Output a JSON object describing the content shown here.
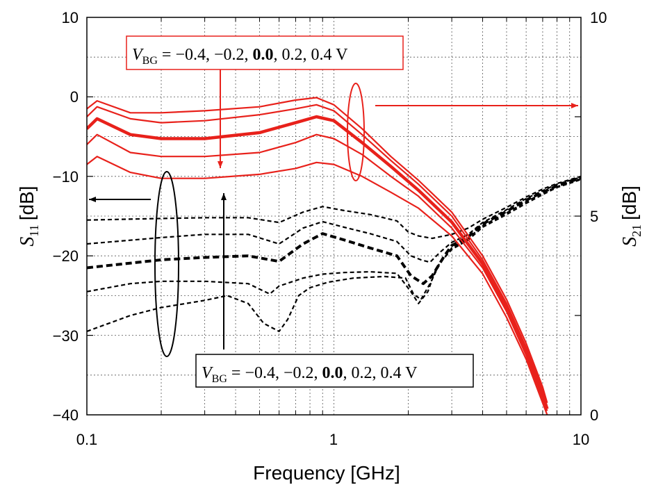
{
  "chart_data": {
    "type": "line",
    "xlabel": "Frequency [GHz]",
    "x_scale": "log",
    "xlim": [
      0.1,
      10
    ],
    "x_ticks": [
      "0.1",
      "1",
      "10"
    ],
    "y_left": {
      "label_main": "S",
      "label_sub": "11",
      "label_unit": "[dB]",
      "lim": [
        -40,
        10
      ],
      "ticks": [
        "10",
        "0",
        "−10",
        "−20",
        "−30",
        "−40"
      ]
    },
    "y_right": {
      "label_main": "S",
      "label_sub": "21",
      "label_unit": "[dB]",
      "lim": [
        0,
        10
      ],
      "ticks": [
        "10",
        "5",
        "0"
      ]
    },
    "grid": true,
    "annotations": {
      "s21": {
        "v": "V",
        "sub": "BG",
        "pre": " = −0.4, −0.2, ",
        "bold": "0.0",
        "post": ", 0.2, 0.4 V"
      },
      "s11": {
        "v": "V",
        "sub": "BG",
        "pre": " = −0.4, −0.2, ",
        "bold": "0.0",
        "post": ", 0.2, 0.4 V"
      }
    },
    "colors": {
      "s21": "#e8211b",
      "s11": "#000000"
    },
    "s21_series": [
      {
        "axis": "right",
        "bold": false,
        "points": [
          [
            0.1,
            7.7
          ],
          [
            0.11,
            7.9
          ],
          [
            0.15,
            7.6
          ],
          [
            0.2,
            7.6
          ],
          [
            0.3,
            7.65
          ],
          [
            0.5,
            7.75
          ],
          [
            0.7,
            7.92
          ],
          [
            0.85,
            7.98
          ],
          [
            1.0,
            7.8
          ],
          [
            1.3,
            7.2
          ],
          [
            1.7,
            6.5
          ],
          [
            2.2,
            5.9
          ],
          [
            3.0,
            5.1
          ],
          [
            4.0,
            4.0
          ],
          [
            5.0,
            2.9
          ],
          [
            6.0,
            1.8
          ],
          [
            7.0,
            0.7
          ],
          [
            7.3,
            0.3
          ]
        ]
      },
      {
        "axis": "right",
        "bold": false,
        "points": [
          [
            0.1,
            7.5
          ],
          [
            0.11,
            7.75
          ],
          [
            0.15,
            7.45
          ],
          [
            0.2,
            7.35
          ],
          [
            0.3,
            7.4
          ],
          [
            0.5,
            7.55
          ],
          [
            0.7,
            7.7
          ],
          [
            0.85,
            7.8
          ],
          [
            1.0,
            7.65
          ],
          [
            1.3,
            7.05
          ],
          [
            1.7,
            6.4
          ],
          [
            2.2,
            5.8
          ],
          [
            3.0,
            5.0
          ],
          [
            4.0,
            3.9
          ],
          [
            5.0,
            2.8
          ],
          [
            6.0,
            1.7
          ],
          [
            7.0,
            0.6
          ],
          [
            7.3,
            0.2
          ]
        ]
      },
      {
        "axis": "right",
        "bold": true,
        "points": [
          [
            0.1,
            7.2
          ],
          [
            0.11,
            7.45
          ],
          [
            0.15,
            7.05
          ],
          [
            0.2,
            6.95
          ],
          [
            0.3,
            6.95
          ],
          [
            0.5,
            7.1
          ],
          [
            0.7,
            7.35
          ],
          [
            0.85,
            7.5
          ],
          [
            1.0,
            7.4
          ],
          [
            1.3,
            6.85
          ],
          [
            1.7,
            6.25
          ],
          [
            2.2,
            5.65
          ],
          [
            3.0,
            4.85
          ],
          [
            4.0,
            3.8
          ],
          [
            5.0,
            2.7
          ],
          [
            6.0,
            1.6
          ],
          [
            7.0,
            0.5
          ],
          [
            7.3,
            0.15
          ]
        ]
      },
      {
        "axis": "right",
        "bold": false,
        "points": [
          [
            0.1,
            6.8
          ],
          [
            0.11,
            7.05
          ],
          [
            0.15,
            6.6
          ],
          [
            0.2,
            6.5
          ],
          [
            0.3,
            6.5
          ],
          [
            0.5,
            6.6
          ],
          [
            0.7,
            6.85
          ],
          [
            0.85,
            7.05
          ],
          [
            1.0,
            6.95
          ],
          [
            1.3,
            6.55
          ],
          [
            1.7,
            6.0
          ],
          [
            2.2,
            5.5
          ],
          [
            3.0,
            4.7
          ],
          [
            4.0,
            3.7
          ],
          [
            5.0,
            2.6
          ],
          [
            6.0,
            1.5
          ],
          [
            7.0,
            0.4
          ],
          [
            7.3,
            0.1
          ]
        ]
      },
      {
        "axis": "right",
        "bold": false,
        "points": [
          [
            0.1,
            6.3
          ],
          [
            0.11,
            6.5
          ],
          [
            0.15,
            6.1
          ],
          [
            0.2,
            5.95
          ],
          [
            0.3,
            5.95
          ],
          [
            0.5,
            6.05
          ],
          [
            0.7,
            6.2
          ],
          [
            0.85,
            6.35
          ],
          [
            1.0,
            6.3
          ],
          [
            1.3,
            6.0
          ],
          [
            1.7,
            5.6
          ],
          [
            2.2,
            5.2
          ],
          [
            3.0,
            4.5
          ],
          [
            4.0,
            3.55
          ],
          [
            5.0,
            2.45
          ],
          [
            6.0,
            1.4
          ],
          [
            7.0,
            0.3
          ],
          [
            7.3,
            0.0
          ]
        ]
      }
    ],
    "s11_series": [
      {
        "axis": "left",
        "bold": false,
        "points": [
          [
            0.1,
            -15.5
          ],
          [
            0.2,
            -15.3
          ],
          [
            0.3,
            -15.2
          ],
          [
            0.45,
            -15.2
          ],
          [
            0.6,
            -15.8
          ],
          [
            0.75,
            -14.5
          ],
          [
            0.9,
            -13.8
          ],
          [
            1.1,
            -14.3
          ],
          [
            1.4,
            -14.8
          ],
          [
            1.8,
            -15.6
          ],
          [
            2.0,
            -17.0
          ],
          [
            2.2,
            -17.5
          ],
          [
            2.5,
            -17.8
          ],
          [
            3.0,
            -17.3
          ],
          [
            3.5,
            -16.5
          ],
          [
            4.0,
            -15.4
          ],
          [
            5.0,
            -13.9
          ],
          [
            6.0,
            -12.6
          ],
          [
            7.0,
            -11.6
          ],
          [
            8.0,
            -10.9
          ],
          [
            10.0,
            -10.0
          ]
        ]
      },
      {
        "axis": "left",
        "bold": false,
        "points": [
          [
            0.1,
            -18.5
          ],
          [
            0.2,
            -17.7
          ],
          [
            0.3,
            -17.3
          ],
          [
            0.45,
            -17.3
          ],
          [
            0.6,
            -18.5
          ],
          [
            0.75,
            -16.5
          ],
          [
            0.9,
            -15.7
          ],
          [
            1.1,
            -16.4
          ],
          [
            1.4,
            -17.2
          ],
          [
            1.8,
            -18.2
          ],
          [
            2.05,
            -20.0
          ],
          [
            2.25,
            -20.5
          ],
          [
            2.45,
            -20.8
          ],
          [
            2.7,
            -19.5
          ],
          [
            3.0,
            -18.3
          ],
          [
            3.5,
            -17.3
          ],
          [
            4.0,
            -15.8
          ],
          [
            5.0,
            -14.2
          ],
          [
            6.0,
            -12.8
          ],
          [
            7.0,
            -11.8
          ],
          [
            8.0,
            -11.0
          ],
          [
            10.0,
            -10.1
          ]
        ]
      },
      {
        "axis": "left",
        "bold": true,
        "points": [
          [
            0.1,
            -21.5
          ],
          [
            0.2,
            -20.5
          ],
          [
            0.3,
            -20.2
          ],
          [
            0.45,
            -20.0
          ],
          [
            0.6,
            -20.7
          ],
          [
            0.75,
            -18.5
          ],
          [
            0.9,
            -17.2
          ],
          [
            1.1,
            -18.0
          ],
          [
            1.4,
            -19.0
          ],
          [
            1.8,
            -20.0
          ],
          [
            2.05,
            -22.5
          ],
          [
            2.3,
            -23.5
          ],
          [
            2.5,
            -22.5
          ],
          [
            2.8,
            -20.0
          ],
          [
            3.0,
            -18.7
          ],
          [
            3.5,
            -17.6
          ],
          [
            4.0,
            -16.0
          ],
          [
            5.0,
            -14.4
          ],
          [
            6.0,
            -13.0
          ],
          [
            7.0,
            -12.0
          ],
          [
            8.0,
            -11.2
          ],
          [
            10.0,
            -10.2
          ]
        ]
      },
      {
        "axis": "left",
        "bold": false,
        "points": [
          [
            0.1,
            -24.5
          ],
          [
            0.15,
            -23.5
          ],
          [
            0.2,
            -23.2
          ],
          [
            0.3,
            -23.2
          ],
          [
            0.45,
            -23.5
          ],
          [
            0.55,
            -24.8
          ],
          [
            0.6,
            -23.8
          ],
          [
            0.75,
            -22.8
          ],
          [
            0.9,
            -22.3
          ],
          [
            1.1,
            -22.1
          ],
          [
            1.4,
            -22.0
          ],
          [
            1.8,
            -22.2
          ],
          [
            2.05,
            -24.5
          ],
          [
            2.2,
            -26.0
          ],
          [
            2.4,
            -24.5
          ],
          [
            2.6,
            -21.5
          ],
          [
            3.0,
            -19.0
          ],
          [
            3.5,
            -17.8
          ],
          [
            4.0,
            -16.2
          ],
          [
            5.0,
            -14.6
          ],
          [
            6.0,
            -13.2
          ],
          [
            7.0,
            -12.1
          ],
          [
            8.0,
            -11.3
          ],
          [
            10.0,
            -10.3
          ]
        ]
      },
      {
        "axis": "left",
        "bold": false,
        "points": [
          [
            0.1,
            -29.5
          ],
          [
            0.15,
            -27.5
          ],
          [
            0.2,
            -26.5
          ],
          [
            0.3,
            -25.6
          ],
          [
            0.37,
            -25.0
          ],
          [
            0.45,
            -26.0
          ],
          [
            0.52,
            -28.5
          ],
          [
            0.6,
            -29.5
          ],
          [
            0.65,
            -28.0
          ],
          [
            0.72,
            -25.0
          ],
          [
            0.8,
            -24.0
          ],
          [
            0.95,
            -23.3
          ],
          [
            1.2,
            -22.8
          ],
          [
            1.6,
            -22.6
          ],
          [
            1.95,
            -22.8
          ],
          [
            2.1,
            -24.8
          ],
          [
            2.25,
            -25.5
          ],
          [
            2.45,
            -23.5
          ],
          [
            2.7,
            -20.8
          ],
          [
            3.0,
            -19.2
          ],
          [
            3.5,
            -18.0
          ],
          [
            4.0,
            -16.4
          ],
          [
            5.0,
            -14.8
          ],
          [
            6.0,
            -13.4
          ],
          [
            7.0,
            -12.3
          ],
          [
            8.0,
            -11.4
          ],
          [
            10.0,
            -10.4
          ]
        ]
      }
    ]
  }
}
